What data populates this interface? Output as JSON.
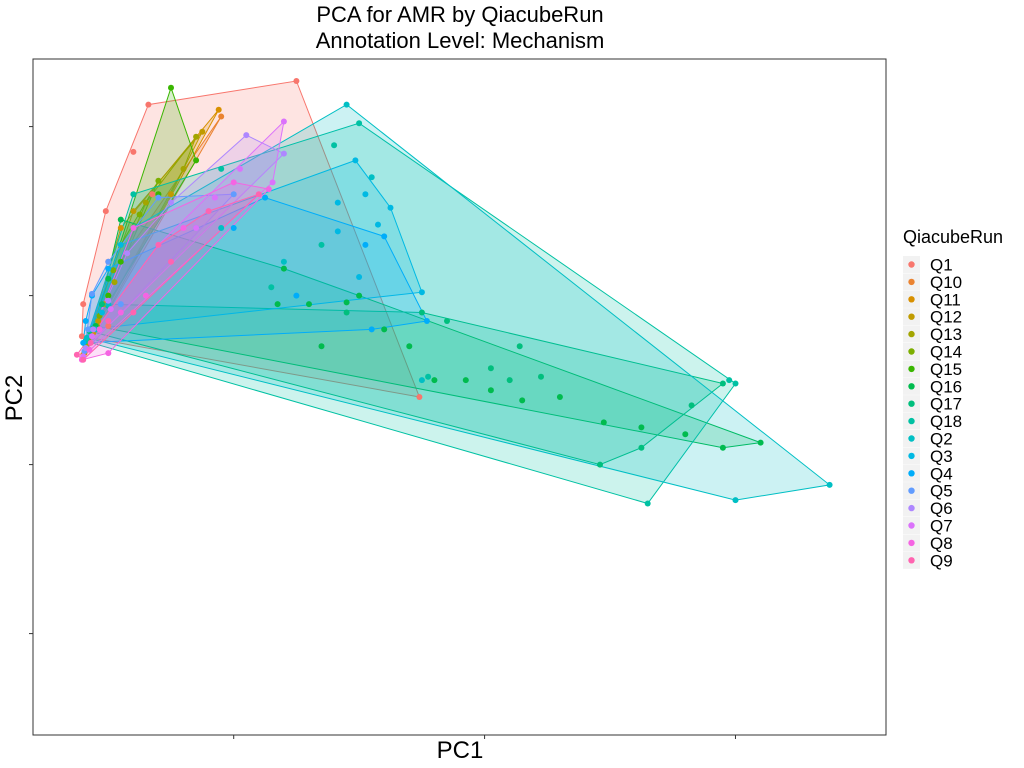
{
  "chart_data": {
    "type": "scatter",
    "title": "PCA for AMR by QiacubeRun",
    "subtitle": "Annotation Level: Mechanism",
    "xlabel": "PC1",
    "ylabel": "PC2",
    "xlim": [
      -0.16,
      0.52
    ],
    "ylim": [
      -0.26,
      0.14
    ],
    "x_ticks": [
      0.0,
      0.2,
      0.4
    ],
    "y_ticks": [
      -0.2,
      -0.1,
      0.0,
      0.1
    ],
    "x_tick_labels_shown": false,
    "y_tick_labels_shown": false,
    "grid": false,
    "convex_hulls": true,
    "legend": {
      "title": "QiacubeRun",
      "position": "right"
    },
    "series": [
      {
        "name": "Q1",
        "color": "#F8766D",
        "points": [
          [
            -0.1,
            -0.018
          ],
          [
            -0.121,
            -0.024
          ],
          [
            -0.12,
            -0.005
          ],
          [
            -0.102,
            0.05
          ],
          [
            -0.08,
            0.085
          ],
          [
            -0.068,
            0.113
          ],
          [
            0.05,
            0.127
          ],
          [
            0.148,
            -0.06
          ],
          [
            -0.065,
            0.06
          ],
          [
            -0.1,
            0.02
          ],
          [
            -0.085,
            0.025
          ]
        ]
      },
      {
        "name": "Q10",
        "color": "#EA8331",
        "points": [
          [
            -0.12,
            -0.035
          ],
          [
            -0.115,
            -0.028
          ],
          [
            -0.11,
            -0.02
          ],
          [
            -0.105,
            -0.01
          ],
          [
            -0.01,
            0.106
          ],
          [
            -0.1,
            0.01
          ]
        ]
      },
      {
        "name": "Q11",
        "color": "#D89000",
        "points": [
          [
            -0.119,
            -0.034
          ],
          [
            -0.112,
            -0.022
          ],
          [
            -0.103,
            -0.005
          ],
          [
            -0.012,
            0.11
          ],
          [
            -0.09,
            0.04
          ],
          [
            -0.06,
            0.06
          ]
        ]
      },
      {
        "name": "Q12",
        "color": "#C09B00",
        "points": [
          [
            -0.118,
            -0.03
          ],
          [
            -0.108,
            -0.015
          ],
          [
            -0.1,
            0.0
          ],
          [
            -0.025,
            0.097
          ],
          [
            -0.08,
            0.05
          ],
          [
            -0.05,
            0.06
          ]
        ]
      },
      {
        "name": "Q13",
        "color": "#A3A500",
        "points": [
          [
            -0.117,
            -0.028
          ],
          [
            -0.109,
            -0.018
          ],
          [
            -0.095,
            0.008
          ],
          [
            -0.03,
            0.094
          ],
          [
            -0.07,
            0.055
          ],
          [
            -0.04,
            0.075
          ]
        ]
      },
      {
        "name": "Q14",
        "color": "#7CAE00",
        "points": [
          [
            -0.116,
            -0.026
          ],
          [
            -0.107,
            -0.012
          ],
          [
            -0.096,
            0.015
          ],
          [
            -0.09,
            0.03
          ],
          [
            -0.075,
            0.048
          ],
          [
            -0.06,
            0.068
          ]
        ]
      },
      {
        "name": "Q15",
        "color": "#39B600",
        "points": [
          [
            -0.113,
            -0.02
          ],
          [
            -0.1,
            0.0
          ],
          [
            -0.09,
            0.02
          ],
          [
            -0.05,
            0.123
          ],
          [
            -0.03,
            0.08
          ],
          [
            -0.06,
            0.06
          ]
        ]
      },
      {
        "name": "Q16",
        "color": "#00BB4E",
        "points": [
          [
            -0.11,
            -0.018
          ],
          [
            -0.1,
            0.01
          ],
          [
            -0.09,
            0.045
          ],
          [
            0.035,
            -0.005
          ],
          [
            0.09,
            -0.004
          ],
          [
            0.12,
            -0.02
          ],
          [
            0.14,
            -0.03
          ],
          [
            0.16,
            -0.05
          ],
          [
            0.185,
            -0.05
          ],
          [
            0.205,
            -0.056
          ],
          [
            0.23,
            -0.062
          ],
          [
            0.26,
            -0.06
          ],
          [
            0.295,
            -0.075
          ],
          [
            0.325,
            -0.078
          ],
          [
            0.36,
            -0.082
          ],
          [
            0.39,
            -0.09
          ],
          [
            0.42,
            -0.087
          ],
          [
            0.04,
            0.016
          ],
          [
            0.06,
            -0.005
          ],
          [
            0.1,
            0.0
          ],
          [
            0.07,
            -0.03
          ]
        ]
      },
      {
        "name": "Q17",
        "color": "#00BF7D",
        "points": [
          [
            -0.115,
            -0.021
          ],
          [
            -0.105,
            -0.005
          ],
          [
            0.15,
            -0.01
          ],
          [
            0.22,
            -0.05
          ],
          [
            0.292,
            -0.1
          ],
          [
            0.39,
            -0.052
          ],
          [
            0.09,
            -0.01
          ],
          [
            0.17,
            -0.015
          ],
          [
            0.205,
            -0.043
          ],
          [
            0.245,
            -0.048
          ],
          [
            0.365,
            -0.065
          ],
          [
            0.325,
            -0.09
          ],
          [
            0.228,
            -0.03
          ]
        ]
      },
      {
        "name": "Q18",
        "color": "#00C1A3",
        "points": [
          [
            -0.118,
            -0.027
          ],
          [
            -0.1,
            -0.006
          ],
          [
            -0.08,
            0.06
          ],
          [
            -0.01,
            0.075
          ],
          [
            0.1,
            0.102
          ],
          [
            0.08,
            0.089
          ],
          [
            0.33,
            -0.123
          ],
          [
            0.155,
            -0.048
          ],
          [
            0.395,
            -0.05
          ],
          [
            0.4,
            -0.052
          ],
          [
            0.07,
            0.03
          ],
          [
            0.03,
            0.005
          ]
        ]
      },
      {
        "name": "Q2",
        "color": "#00BFC4",
        "points": [
          [
            -0.117,
            -0.025
          ],
          [
            -0.11,
            -0.02
          ],
          [
            -0.1,
            -0.005
          ],
          [
            -0.08,
            0.04
          ],
          [
            0.09,
            0.113
          ],
          [
            0.475,
            -0.112
          ],
          [
            0.4,
            -0.121
          ],
          [
            0.11,
            0.07
          ],
          [
            0.15,
            -0.05
          ],
          [
            0.04,
            0.02
          ],
          [
            -0.01,
            0.04
          ]
        ]
      },
      {
        "name": "Q3",
        "color": "#00B9E3",
        "points": [
          [
            -0.115,
            -0.02
          ],
          [
            -0.105,
            -0.01
          ],
          [
            -0.09,
            0.03
          ],
          [
            0.105,
            0.06
          ],
          [
            0.125,
            0.052
          ],
          [
            0.115,
            0.042
          ],
          [
            0.1,
            0.011
          ],
          [
            0.15,
            0.002
          ],
          [
            0.097,
            0.08
          ],
          [
            0.083,
            0.055
          ],
          [
            0.083,
            0.038
          ]
        ]
      },
      {
        "name": "Q4",
        "color": "#00ADFA",
        "points": [
          [
            -0.12,
            -0.028
          ],
          [
            -0.118,
            -0.015
          ],
          [
            -0.113,
            0.0
          ],
          [
            -0.1,
            0.016
          ],
          [
            0.025,
            0.058
          ],
          [
            0.11,
            -0.02
          ],
          [
            0.154,
            -0.015
          ],
          [
            0.0,
            0.04
          ],
          [
            0.05,
            0.0
          ],
          [
            0.12,
            0.035
          ],
          [
            0.105,
            0.03
          ]
        ]
      },
      {
        "name": "Q5",
        "color": "#619CFF",
        "points": [
          [
            -0.119,
            -0.033
          ],
          [
            -0.116,
            -0.02
          ],
          [
            -0.113,
            0.001
          ],
          [
            -0.1,
            0.02
          ],
          [
            -0.06,
            0.058
          ],
          [
            0.0,
            0.06
          ],
          [
            -0.03,
            0.04
          ],
          [
            -0.09,
            -0.005
          ]
        ]
      },
      {
        "name": "Q6",
        "color": "#AE87FF",
        "points": [
          [
            -0.118,
            -0.031
          ],
          [
            -0.112,
            -0.02
          ],
          [
            -0.1,
            -0.003
          ],
          [
            -0.085,
            0.025
          ],
          [
            -0.05,
            0.055
          ],
          [
            0.01,
            0.095
          ],
          [
            0.04,
            0.084
          ],
          [
            -0.02,
            0.05
          ]
        ]
      },
      {
        "name": "Q7",
        "color": "#DB72FB",
        "points": [
          [
            -0.12,
            -0.036
          ],
          [
            -0.113,
            -0.024
          ],
          [
            -0.098,
            -0.008
          ],
          [
            -0.06,
            0.03
          ],
          [
            -0.015,
            0.058
          ],
          [
            0.04,
            0.103
          ],
          [
            0.031,
            0.067
          ],
          [
            0.005,
            0.075
          ],
          [
            -0.03,
            0.04
          ]
        ]
      },
      {
        "name": "Q8",
        "color": "#F564E3",
        "points": [
          [
            -0.121,
            -0.038
          ],
          [
            -0.115,
            -0.032
          ],
          [
            -0.107,
            -0.02
          ],
          [
            -0.1,
            -0.034
          ],
          [
            -0.09,
            -0.01
          ],
          [
            -0.07,
            0.0
          ],
          [
            -0.04,
            0.04
          ],
          [
            0.0,
            0.067
          ],
          [
            0.028,
            0.063
          ],
          [
            -0.08,
            0.04
          ]
        ]
      },
      {
        "name": "Q9",
        "color": "#FF64B0",
        "points": [
          [
            -0.125,
            -0.035
          ],
          [
            -0.12,
            -0.038
          ],
          [
            -0.114,
            -0.028
          ],
          [
            -0.1,
            -0.015
          ],
          [
            -0.08,
            -0.01
          ],
          [
            -0.05,
            0.02
          ],
          [
            -0.02,
            0.05
          ],
          [
            0.02,
            0.06
          ],
          [
            -0.06,
            0.03
          ]
        ]
      }
    ]
  }
}
